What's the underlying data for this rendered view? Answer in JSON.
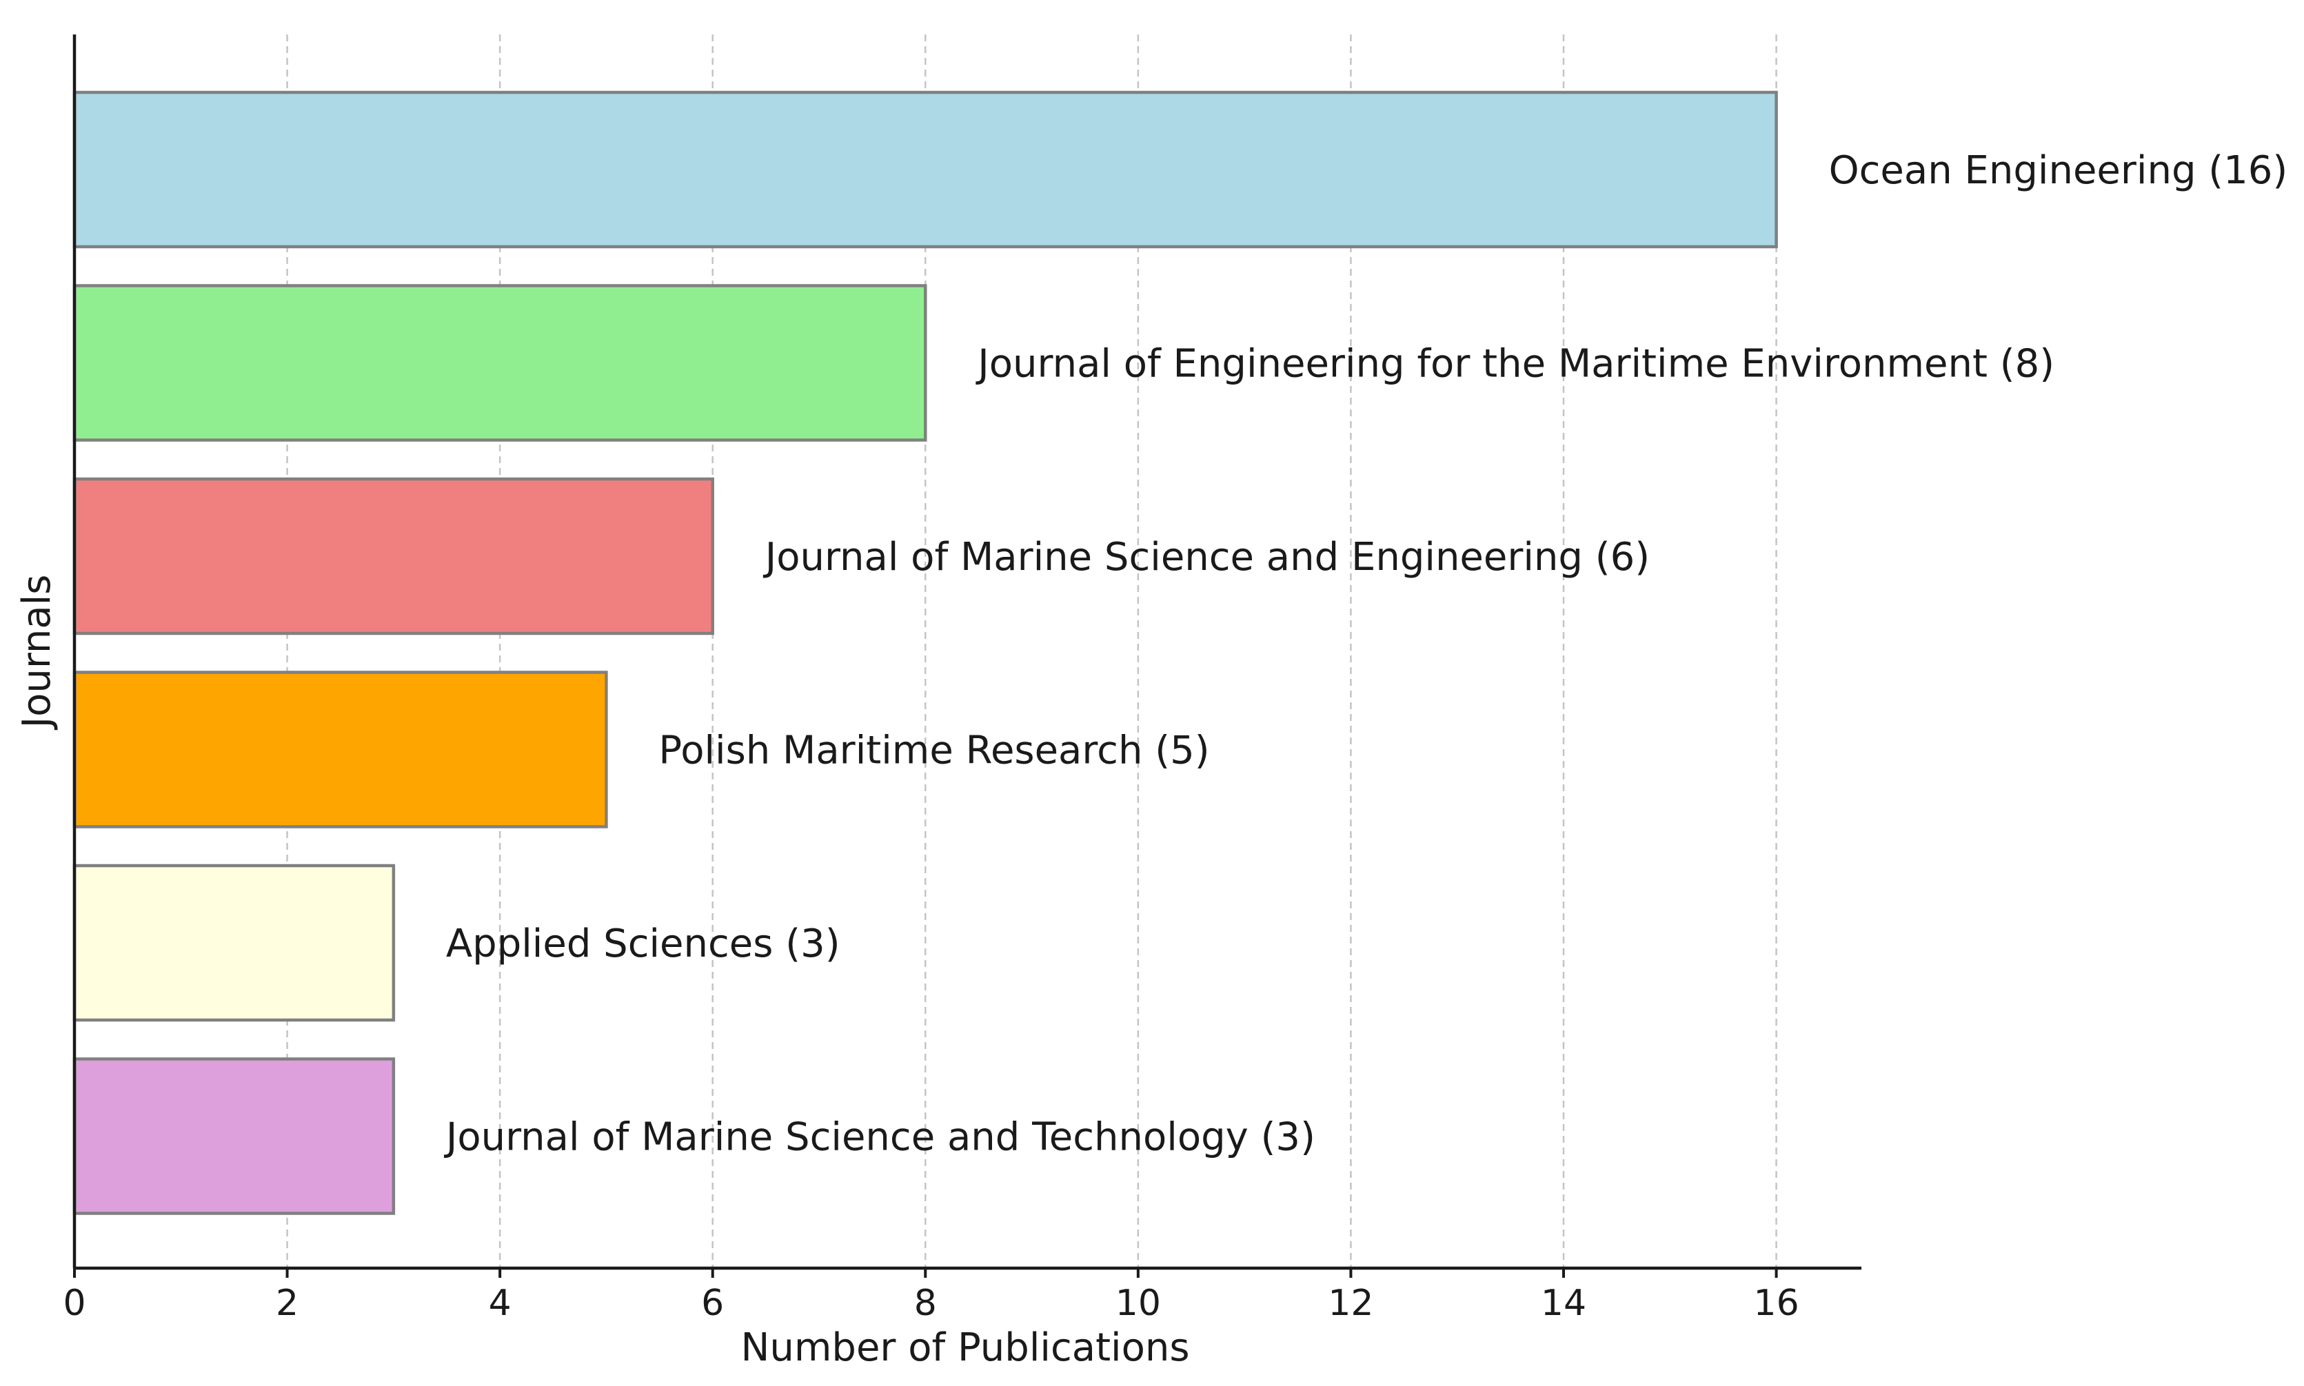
{
  "chart_data": {
    "type": "bar",
    "orientation": "horizontal",
    "title": "",
    "xlabel": "Number of Publications",
    "ylabel": "Journals",
    "xlim": [
      0,
      16.8
    ],
    "xticks": [
      0,
      2,
      4,
      6,
      8,
      10,
      12,
      14,
      16
    ],
    "grid": "vertical dashed",
    "categories": [
      "Ocean Engineering",
      "Journal of Engineering for the Maritime Environment",
      "Journal of Marine Science and Engineering",
      "Polish Maritime Research",
      "Applied Sciences",
      "Journal of Marine Science and Technology"
    ],
    "values": [
      16,
      8,
      6,
      5,
      3,
      3
    ],
    "bar_labels": [
      "Ocean Engineering (16)",
      "Journal of Engineering for the Maritime Environment (8)",
      "Journal of Marine Science and Engineering (6)",
      "Polish Maritime Research (5)",
      "Applied Sciences (3)",
      "Journal of Marine Science and Technology (3)"
    ],
    "colors": [
      "#add8e6",
      "#90ee90",
      "#f08080",
      "#ffa500",
      "#ffffe0",
      "#dda0dd"
    ],
    "edge_color": "#808080"
  }
}
